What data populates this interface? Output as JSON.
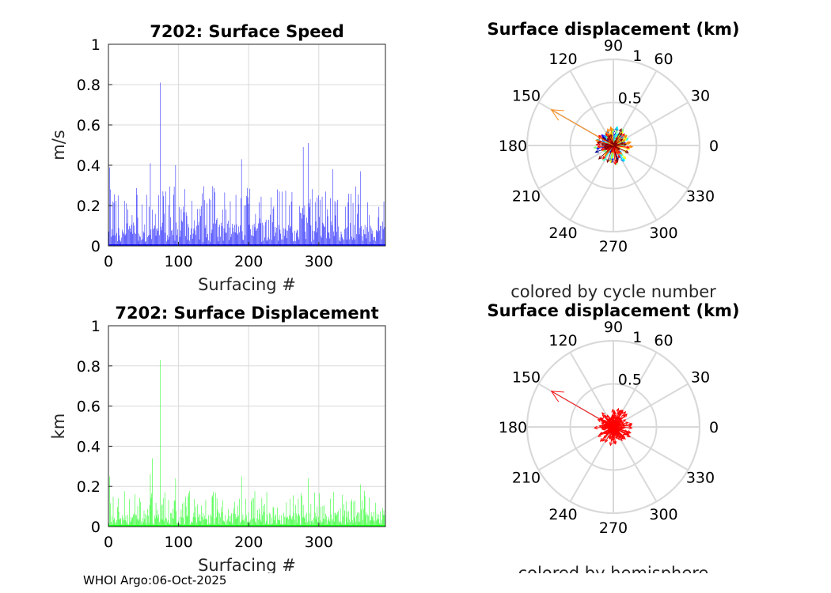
{
  "footer": "WHOI Argo:06-Oct-2025",
  "colors": {
    "speed_bars": "#0000ff",
    "displacement_bars": "#00ff00",
    "hemisphere_arrows": "#ff0000",
    "grid": "#d9d9d9",
    "axis": "#262626"
  },
  "chart_data": [
    {
      "id": "speed",
      "type": "bar",
      "title": "7202: Surface Speed",
      "xlabel": "Surfacing #",
      "ylabel": "m/s",
      "xlim": [
        0,
        395
      ],
      "ylim": [
        0,
        1
      ],
      "xticks": [
        0,
        100,
        200,
        300
      ],
      "yticks": [
        0,
        0.2,
        0.4,
        0.6,
        0.8,
        1
      ],
      "ytick_labels": [
        "0",
        "0.2",
        "0.4",
        "0.6",
        "0.8",
        "1"
      ],
      "grid": true,
      "color": "#0000ff",
      "n_points": 394,
      "peaks": [
        {
          "x": 2,
          "y": 0.39
        },
        {
          "x": 3,
          "y": 0.28
        },
        {
          "x": 14,
          "y": 0.25
        },
        {
          "x": 60,
          "y": 0.41
        },
        {
          "x": 74,
          "y": 0.81
        },
        {
          "x": 96,
          "y": 0.4
        },
        {
          "x": 190,
          "y": 0.43
        },
        {
          "x": 278,
          "y": 0.49
        },
        {
          "x": 285,
          "y": 0.51
        },
        {
          "x": 320,
          "y": 0.38
        },
        {
          "x": 360,
          "y": 0.37
        },
        {
          "x": 393,
          "y": 0.22
        }
      ],
      "typical_range": [
        0.02,
        0.3
      ]
    },
    {
      "id": "displacement",
      "type": "bar",
      "title": "7202: Surface Displacement",
      "xlabel": "Surfacing #",
      "ylabel": "km",
      "xlim": [
        0,
        395
      ],
      "ylim": [
        0,
        1
      ],
      "xticks": [
        0,
        100,
        200,
        300
      ],
      "yticks": [
        0,
        0.2,
        0.4,
        0.6,
        0.8,
        1
      ],
      "ytick_labels": [
        "0",
        "0.2",
        "0.4",
        "0.6",
        "0.8",
        "1"
      ],
      "grid": true,
      "color": "#00ff00",
      "n_points": 394,
      "peaks": [
        {
          "x": 2,
          "y": 0.25
        },
        {
          "x": 60,
          "y": 0.26
        },
        {
          "x": 63,
          "y": 0.34
        },
        {
          "x": 74,
          "y": 0.83
        },
        {
          "x": 96,
          "y": 0.24
        },
        {
          "x": 190,
          "y": 0.25
        },
        {
          "x": 285,
          "y": 0.24
        },
        {
          "x": 360,
          "y": 0.21
        },
        {
          "x": 393,
          "y": 0.08
        }
      ],
      "typical_range": [
        0.01,
        0.18
      ]
    },
    {
      "id": "polar-cycle",
      "type": "polar_vectors",
      "title": "Surface displacement (km)",
      "caption": "colored by cycle number",
      "rlim": [
        0,
        1
      ],
      "rticks": [
        0.5,
        1
      ],
      "rtick_labels": [
        "0.5",
        "1"
      ],
      "angle_ticks": [
        0,
        30,
        60,
        90,
        120,
        150,
        180,
        210,
        240,
        270,
        300,
        330
      ],
      "angle_labels": [
        "0",
        "30",
        "60",
        "90",
        "120",
        "150",
        "180",
        "210",
        "240",
        "270",
        "300",
        "330"
      ],
      "color_mode": "cycle",
      "palette": [
        "#00008f",
        "#0000ff",
        "#0080ff",
        "#00ffff",
        "#80ff80",
        "#ffff00",
        "#ff8000",
        "#ff0000",
        "#800000"
      ],
      "longest_vector": {
        "angle_deg": 150,
        "r": 0.83
      }
    },
    {
      "id": "polar-hemisphere",
      "type": "polar_vectors",
      "title": "Surface displacement (km)",
      "caption": "colored by hemisphere",
      "rlim": [
        0,
        1
      ],
      "rticks": [
        0.5,
        1
      ],
      "rtick_labels": [
        "0.5",
        "1"
      ],
      "angle_ticks": [
        0,
        30,
        60,
        90,
        120,
        150,
        180,
        210,
        240,
        270,
        300,
        330
      ],
      "angle_labels": [
        "0",
        "30",
        "60",
        "90",
        "120",
        "150",
        "180",
        "210",
        "240",
        "270",
        "300",
        "330"
      ],
      "color_mode": "single",
      "palette": [
        "#ff0000"
      ],
      "longest_vector": {
        "angle_deg": 150,
        "r": 0.83
      }
    }
  ]
}
